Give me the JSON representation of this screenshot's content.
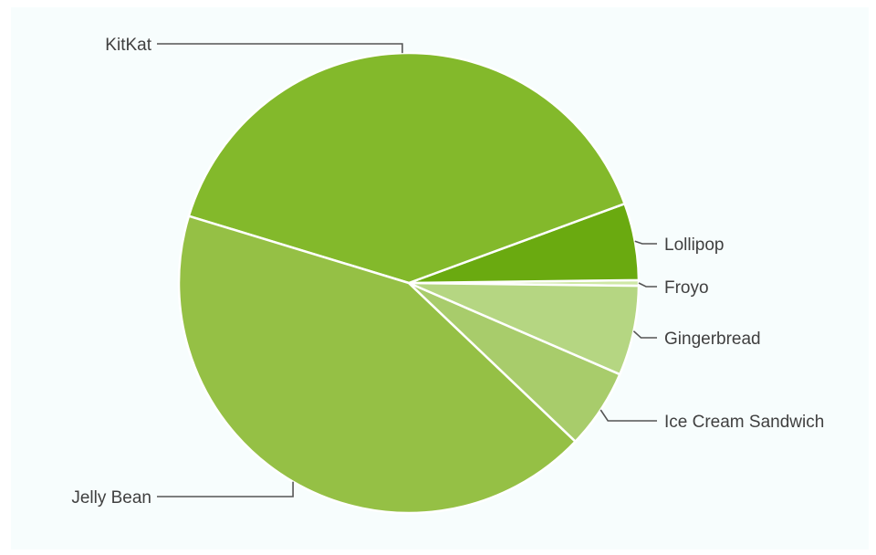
{
  "chart_data": {
    "type": "pie",
    "title": "",
    "start_angle_deg": 90,
    "direction": "counterclockwise",
    "slices": [
      {
        "label": "Froyo",
        "value": 0.4,
        "color": "#cfe8a6"
      },
      {
        "label": "Lollipop",
        "value": 5.4,
        "color": "#6aaa10"
      },
      {
        "label": "KitKat",
        "value": 39.7,
        "color": "#83b92b"
      },
      {
        "label": "Jelly Bean",
        "value": 42.6,
        "color": "#95c045"
      },
      {
        "label": "Ice Cream Sandwich",
        "value": 5.6,
        "color": "#a8cc6b"
      },
      {
        "label": "Gingerbread",
        "value": 6.3,
        "color": "#b5d682"
      }
    ],
    "legend": "none (leader-line labels)"
  }
}
